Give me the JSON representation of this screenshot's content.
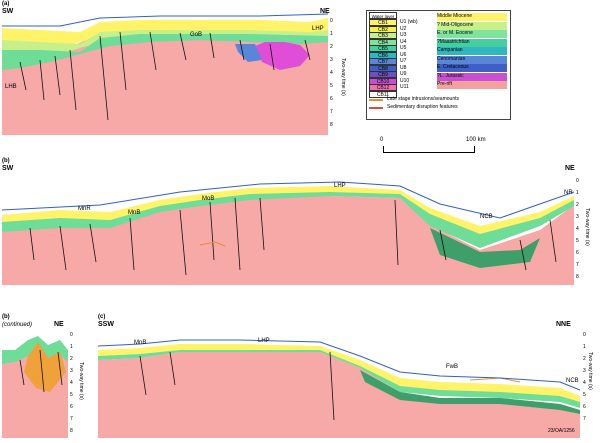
{
  "panels": {
    "a": {
      "label": "(a)",
      "left": "SW",
      "right": "NE",
      "basins": [
        "LHB",
        "GoB",
        "LHP"
      ]
    },
    "b": {
      "label": "(b)",
      "left": "SW",
      "right": "NE",
      "basins": [
        "MnR",
        "MnB",
        "MoB",
        "LHP",
        "NCB",
        "NR"
      ]
    },
    "b2": {
      "label": "(b)",
      "sub": "(continued)",
      "right": "NE"
    },
    "c": {
      "label": "(c)",
      "left": "SSW",
      "right": "NNE",
      "basins": [
        "MnB",
        "LHP",
        "FwB",
        "NCB"
      ],
      "stamp": "23/OA/1256"
    }
  },
  "axis": {
    "title": "Two-way time (s)",
    "ticks": [
      "0",
      "1",
      "2",
      "3",
      "4",
      "5",
      "6",
      "7",
      "8"
    ],
    "ticks_b2": [
      "0",
      "1",
      "2",
      "3",
      "4",
      "5",
      "6",
      "7",
      "8"
    ]
  },
  "legend": {
    "header": "Water layer",
    "rows": [
      {
        "code": "CB1",
        "unit": "U1 (wb)",
        "color": "#fff36a"
      },
      {
        "code": "CB2",
        "unit": "U2",
        "color": "#f4ef52"
      },
      {
        "code": "CB3",
        "unit": "U3",
        "color": "#c8f08a"
      },
      {
        "code": "CB4",
        "unit": "U4",
        "color": "#7fe39b"
      },
      {
        "code": "CB5",
        "unit": "U5",
        "color": "#45cf9f"
      },
      {
        "code": "CB6",
        "unit": "U6",
        "color": "#2fb6c0"
      },
      {
        "code": "CB7",
        "unit": "U7",
        "color": "#5a86d8"
      },
      {
        "code": "CB8",
        "unit": "U8",
        "color": "#3d5fc6"
      },
      {
        "code": "CB9",
        "unit": "U9",
        "color": "#6e4fc2"
      },
      {
        "code": "CB10",
        "unit": "U10",
        "color": "#c84fd2"
      },
      {
        "code": "CB12",
        "unit": "U11",
        "color": "#f070b0"
      },
      {
        "code": "CB11",
        "unit": "",
        "color": "#ffffff"
      }
    ],
    "ages": [
      "Middle Miocene",
      "? Mid-Oligocene",
      "E. or M. Eocene",
      "?Maastrichtian",
      "Campanian",
      "Cenomanian",
      "E. Cretaceous",
      "?L. Jurassic",
      "Pre-rift"
    ],
    "age_colors": [
      "#fff36a",
      "#c8f08a",
      "#7fe39b",
      "#45cf9f",
      "#2fb6c0",
      "#5a86d8",
      "#3d5fc6",
      "#c84fd2",
      "#f4a0a0"
    ],
    "notes": [
      "Late stage intrusions/seamounts",
      "Sedimentary disruption features"
    ],
    "note_colors": [
      "#e8902a",
      "#d94a3a"
    ]
  },
  "scale": {
    "start": "0",
    "end": "100 km"
  },
  "colors": {
    "basement": "#f6a9a6",
    "yellow": "#fff36a",
    "green1": "#c8f08a",
    "green2": "#6fdc98",
    "teal": "#34c3a6",
    "blue": "#5a86d8",
    "magenta": "#e04ed8",
    "orange": "#f0a13a",
    "darkgreen": "#3f9f6a"
  }
}
